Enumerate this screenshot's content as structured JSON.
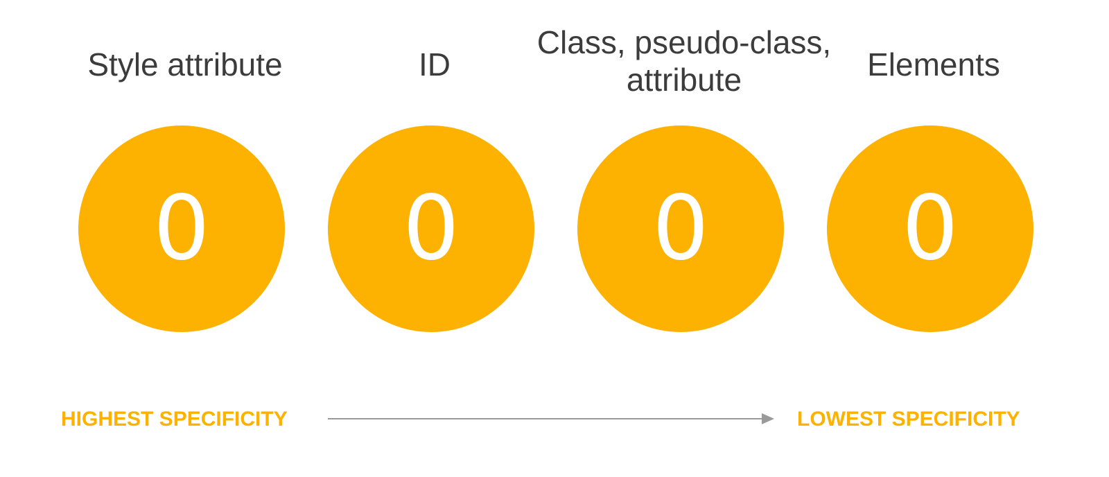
{
  "categories": [
    {
      "label": "Style attribute",
      "value": "0"
    },
    {
      "label": "ID",
      "value": "0"
    },
    {
      "label": "Class, pseudo-class, attribute",
      "value": "0"
    },
    {
      "label": "Elements",
      "value": "0"
    }
  ],
  "scale": {
    "left_label": "HIGHEST SPECIFICITY",
    "right_label": "LOWEST SPECIFICITY"
  },
  "colors": {
    "accent": "#fdb201",
    "text": "#3c3c3c",
    "arrow": "#999999",
    "circle_text": "#ffffff"
  }
}
